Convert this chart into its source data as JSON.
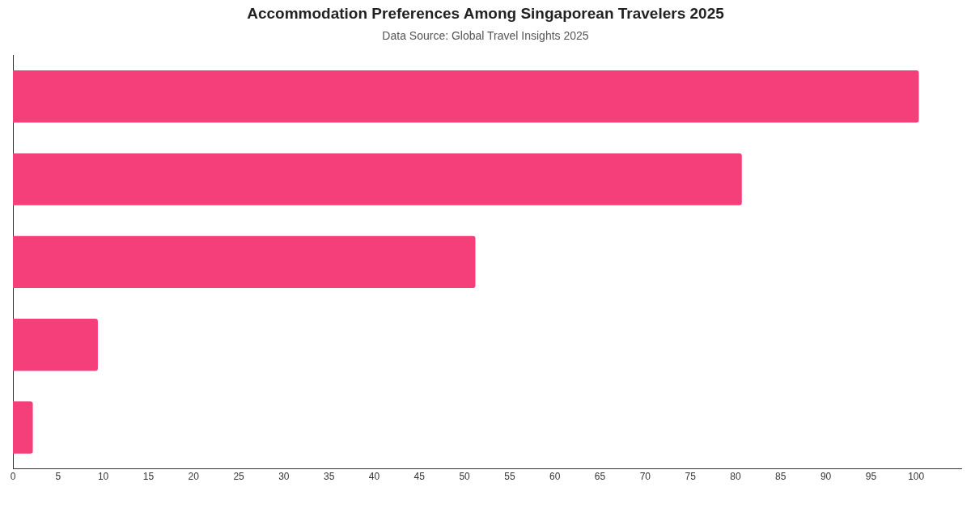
{
  "chart_data": {
    "type": "bar",
    "orientation": "horizontal",
    "title": "Accommodation Preferences Among Singaporean Travelers 2025",
    "subtitle": "Data Source: Global Travel Insights 2025",
    "categories": [
      null,
      null,
      null,
      null,
      null
    ],
    "values": [
      100.3,
      80.7,
      51.2,
      9.4,
      2.2
    ],
    "color": "#f43f7a",
    "xlim": [
      0,
      105
    ],
    "xticks": [
      0,
      5,
      10,
      15,
      20,
      25,
      30,
      35,
      40,
      45,
      50,
      55,
      60,
      65,
      70,
      75,
      80,
      85,
      90,
      95,
      100
    ],
    "grid": false,
    "legend": false
  }
}
